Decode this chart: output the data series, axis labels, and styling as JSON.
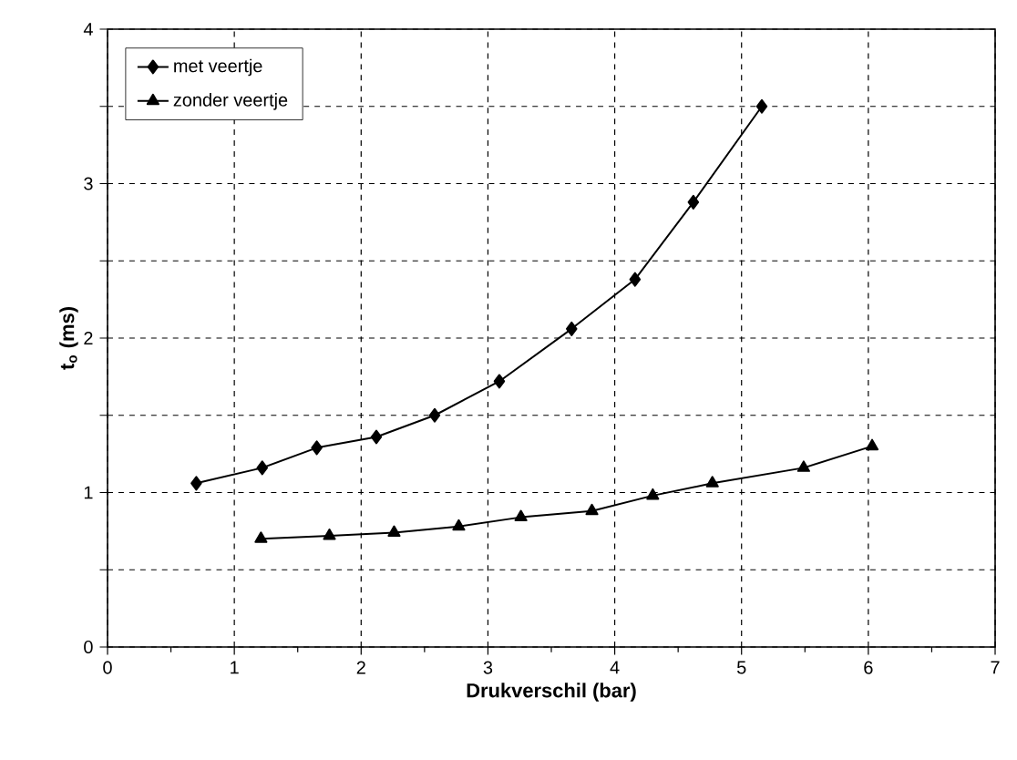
{
  "chart_data": {
    "type": "line",
    "xlabel": "Drukverschil (bar)",
    "ylabel": "t$_{o}$ (ms)",
    "xlim": [
      0,
      7
    ],
    "ylim": [
      0,
      4
    ],
    "xticks": [
      0,
      1,
      2,
      3,
      4,
      5,
      6,
      7
    ],
    "yticks": [
      0,
      {
        "value": 0.5,
        "label": null
      },
      1,
      {
        "value": 1.5,
        "label": null
      },
      2,
      {
        "value": 2.5,
        "label": null
      },
      3,
      {
        "value": 3.5,
        "label": null
      },
      4
    ],
    "grid": true,
    "legend": "top left",
    "line_style": "solid",
    "series": [
      {
        "name": "met veertje",
        "color": "#000000",
        "marker": "diamond",
        "x": [
          0.7,
          1.22,
          1.65,
          2.12,
          2.58,
          3.09,
          3.66,
          4.16,
          4.62,
          5.16
        ],
        "values": [
          1.06,
          1.16,
          1.29,
          1.36,
          1.5,
          1.72,
          2.06,
          2.38,
          2.88,
          3.5
        ]
      },
      {
        "name": "zonder veertje",
        "color": "#000000",
        "marker": "triangle",
        "x": [
          1.21,
          1.75,
          2.26,
          2.77,
          3.26,
          3.82,
          4.3,
          4.77,
          5.49,
          6.03
        ],
        "values": [
          0.7,
          0.72,
          0.74,
          0.78,
          0.84,
          0.88,
          0.98,
          1.06,
          1.16,
          1.3
        ]
      }
    ]
  }
}
